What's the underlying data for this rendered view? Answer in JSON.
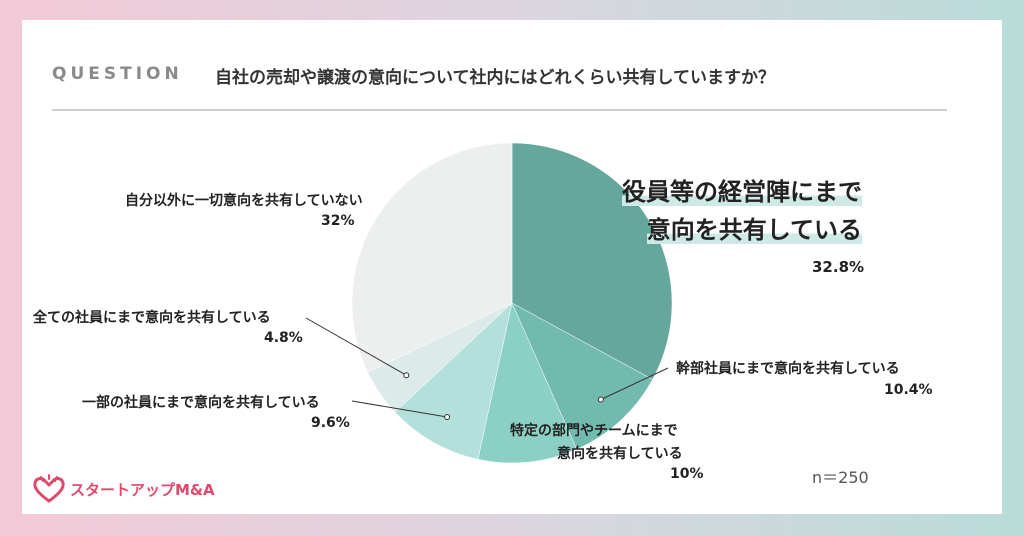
{
  "question_label": "QUESTION",
  "question_text": "自社の売却や譲渡の意向について社内にはどれくらい共有していますか？",
  "n_note": "n＝250",
  "logo_text": "スタートアップM&A",
  "colors": {
    "slice1": "#65a79c",
    "slice2": "#72b9ae",
    "slice3": "#8ccfc4",
    "slice4": "#b3e0da",
    "slice5": "#dcebea",
    "slice6": "#edefee",
    "logo": "#e0486c"
  },
  "chart_data": {
    "type": "pie",
    "labels": [
      "役員等の経営陣にまで意向を共有している",
      "幹部社員にまで意向を共有している",
      "特定の部門やチームにまで意向を共有している",
      "一部の社員にまで意向を共有している",
      "全ての社員にまで意向を共有している",
      "自分以外に一切意向を共有していない"
    ],
    "values": [
      32.8,
      10.4,
      10,
      9.6,
      4.8,
      32
    ],
    "value_labels": [
      "32.8%",
      "10.4%",
      "10%",
      "9.6%",
      "4.8%",
      "32%"
    ],
    "start": "12 o'clock",
    "direction": "clockwise"
  },
  "labels_text": {
    "s1_line1": "役員等の経営陣にまで",
    "s1_line2": "意向を共有している",
    "s2": "幹部社員にまで意向を共有している",
    "s3_line1": "特定の部門やチームにまで",
    "s3_line2": "意向を共有している",
    "s4": "一部の社員にまで意向を共有している",
    "s5": "全ての社員にまで意向を共有している",
    "s6": "自分以外に一切意向を共有していない"
  }
}
